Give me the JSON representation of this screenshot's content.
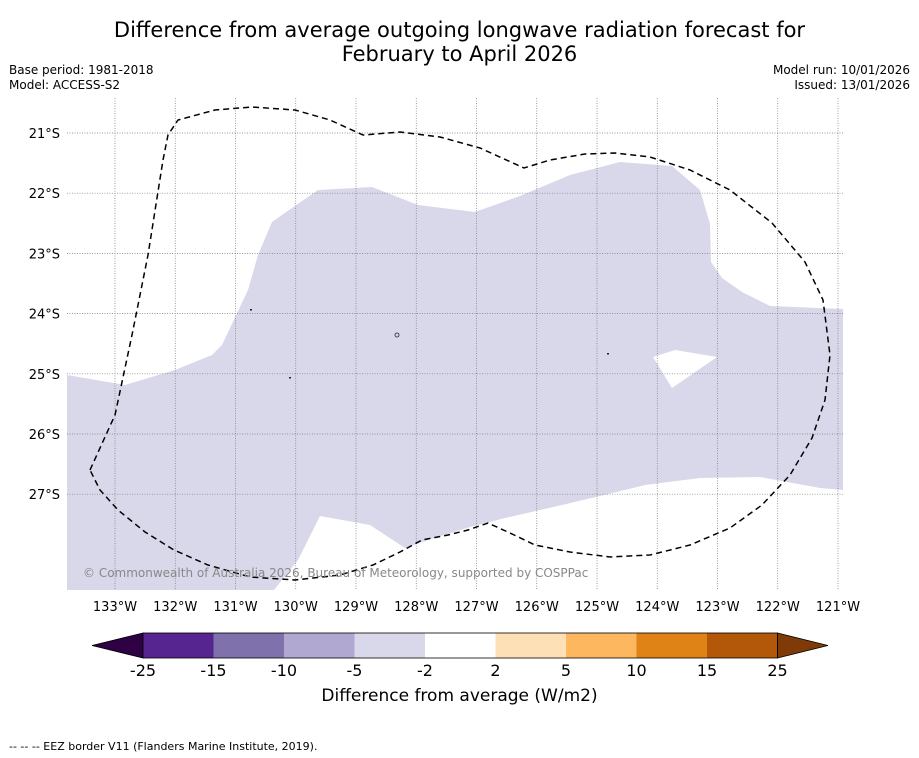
{
  "title": {
    "line1": "Difference from average outgoing longwave radiation forecast for",
    "line2": "February to April 2026"
  },
  "meta": {
    "base_period": "Base period: 1981-2018",
    "model": "Model: ACCESS-S2",
    "model_run": "Model run: 10/01/2026",
    "issued": "Issued: 13/01/2026"
  },
  "map": {
    "lat_labels": [
      "21°S",
      "22°S",
      "23°S",
      "24°S",
      "25°S",
      "26°S",
      "27°S"
    ],
    "lon_labels": [
      "133°W",
      "132°W",
      "131°W",
      "130°W",
      "129°W",
      "128°W",
      "127°W",
      "126°W",
      "125°W",
      "124°W",
      "123°W",
      "122°W",
      "121°W"
    ],
    "copyright": "© Commonwealth of Australia 2026, Bureau of Meteorology, supported by COSPPac",
    "anomaly_category": "-5 to -2",
    "anomaly_fill": "#d8d8ea"
  },
  "colorbar": {
    "title": "Difference from average (W/m2)",
    "ticks": [
      "-25",
      "-15",
      "-10",
      "-5",
      "-2",
      "2",
      "5",
      "10",
      "15",
      "25"
    ],
    "colors": [
      "#56258f",
      "#7f71ab",
      "#b0a8d1",
      "#d8d8ea",
      "#ffffff",
      "#fde0b6",
      "#fdb75f",
      "#e08316",
      "#b25808"
    ],
    "low_extend_color": "#300045",
    "high_extend_color": "#7f3a07"
  },
  "footer": "--  --  -- EEZ border V11 (Flanders Marine Institute, 2019)."
}
